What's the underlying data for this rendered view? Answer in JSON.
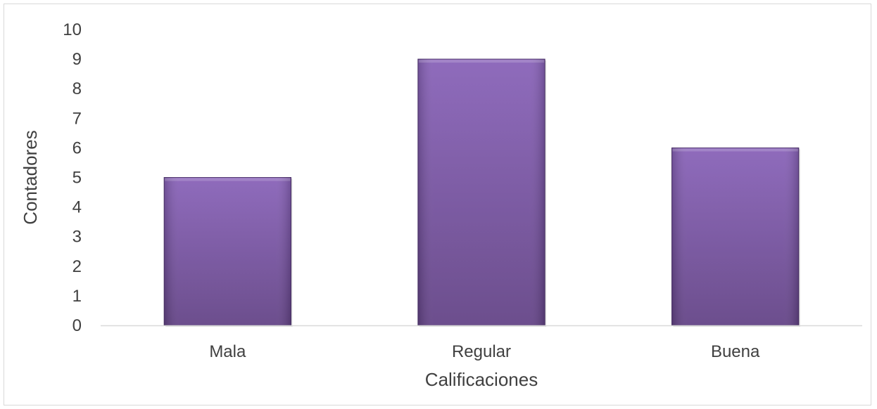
{
  "chart_data": {
    "type": "bar",
    "title": "",
    "xlabel": "Calificaciones",
    "ylabel": "Contadores",
    "categories": [
      "Mala",
      "Regular",
      "Buena"
    ],
    "values": [
      5,
      9,
      6
    ],
    "ylim": [
      0,
      10
    ],
    "yticks": [
      "0",
      "1",
      "2",
      "3",
      "4",
      "5",
      "6",
      "7",
      "8",
      "9",
      "10"
    ],
    "grid": false,
    "legend": "none",
    "colors": {
      "bar_top": "#8862b8",
      "bar_bottom": "#634386",
      "bar_edge": "#4f356d",
      "axis": "#d9d9d9",
      "text": "#404040"
    }
  }
}
